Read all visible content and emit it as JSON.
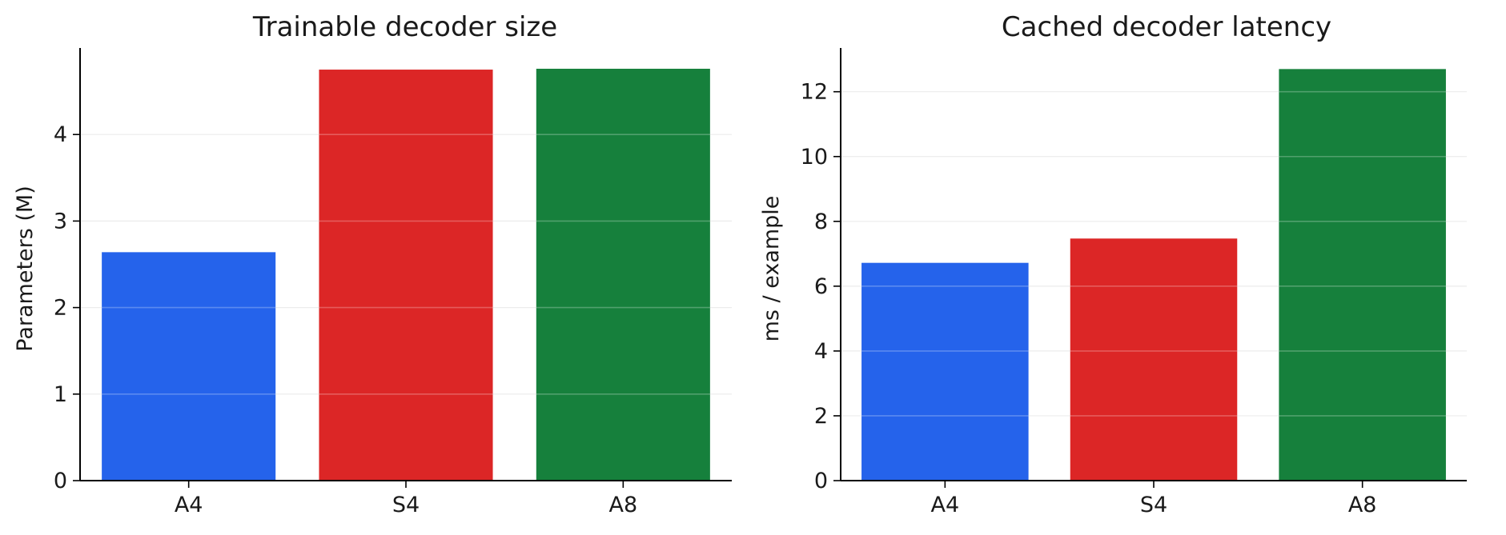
{
  "chart_data": [
    {
      "type": "bar",
      "title": "Trainable decoder size",
      "xlabel": "",
      "ylabel": "Parameters (M)",
      "categories": [
        "A4",
        "S4",
        "A8"
      ],
      "values": [
        2.64,
        4.75,
        4.76
      ],
      "colors": [
        "#2563eb",
        "#dc2626",
        "#16803c"
      ],
      "ylim": [
        0,
        5.0
      ],
      "yticks": [
        0,
        1,
        2,
        3,
        4
      ],
      "grid": true,
      "legend": "none"
    },
    {
      "type": "bar",
      "title": "Cached decoder latency",
      "xlabel": "",
      "ylabel": "ms / example",
      "categories": [
        "A4",
        "S4",
        "A8"
      ],
      "values": [
        6.72,
        7.47,
        12.7
      ],
      "colors": [
        "#2563eb",
        "#dc2626",
        "#16803c"
      ],
      "ylim": [
        0,
        13.35
      ],
      "yticks": [
        0,
        2,
        4,
        6,
        8,
        10,
        12
      ],
      "grid": true,
      "legend": "none"
    }
  ]
}
